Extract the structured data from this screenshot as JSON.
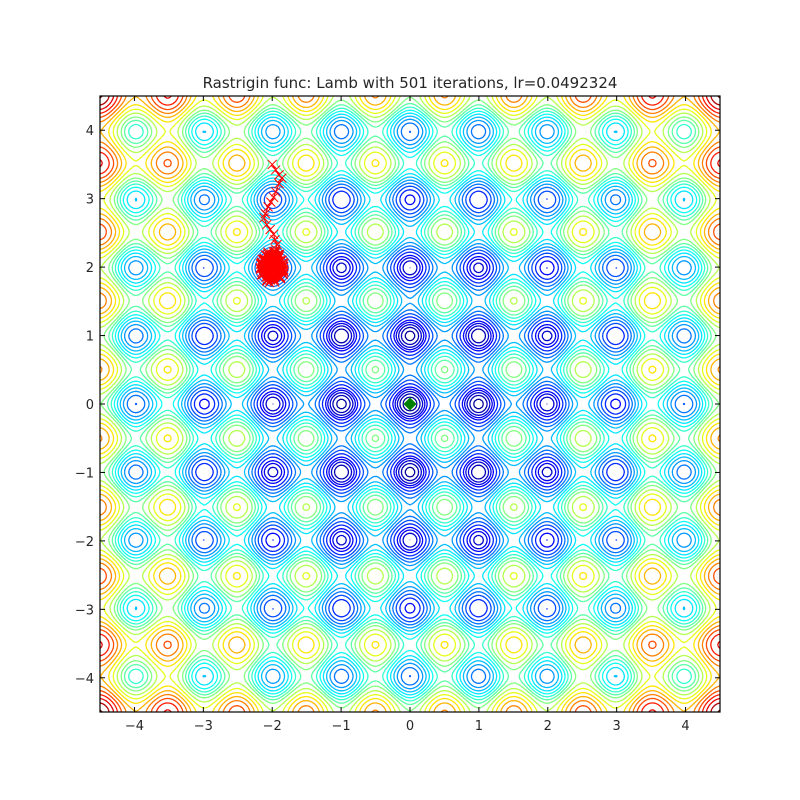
{
  "chart_data": {
    "type": "contour",
    "title": "Rastrigin func: Lamb with 501 iterations, lr=0.0492324",
    "xlabel": "",
    "ylabel": "",
    "xlim": [
      -4.5,
      4.5
    ],
    "ylim": [
      -4.5,
      4.5
    ],
    "xticks": [
      -4,
      -3,
      -2,
      -1,
      0,
      1,
      2,
      3,
      4
    ],
    "yticks": [
      -4,
      -3,
      -2,
      -1,
      0,
      1,
      2,
      3,
      4
    ],
    "xtick_labels": [
      "−4",
      "−3",
      "−2",
      "−1",
      "0",
      "1",
      "2",
      "3",
      "4"
    ],
    "ytick_labels": [
      "−4",
      "−3",
      "−2",
      "−1",
      "0",
      "1",
      "2",
      "3",
      "4"
    ],
    "function": "rastrigin",
    "colormap": "jet",
    "grid": false,
    "contour_levels": [
      2,
      4,
      6,
      8,
      10,
      13,
      16,
      19,
      22,
      25,
      28,
      31,
      34,
      37,
      40,
      44,
      48,
      52,
      56,
      60,
      64,
      68,
      72,
      76,
      80
    ],
    "level_range": [
      0,
      80
    ],
    "trajectory": {
      "color": "#ff0000",
      "start": [
        -2.0,
        3.5
      ],
      "path": [
        [
          -2.0,
          3.5
        ],
        [
          -1.95,
          3.42
        ],
        [
          -1.9,
          3.35
        ],
        [
          -1.86,
          3.3
        ],
        [
          -1.9,
          3.22
        ],
        [
          -1.95,
          3.1
        ],
        [
          -1.98,
          3.02
        ],
        [
          -2.02,
          2.95
        ],
        [
          -2.06,
          2.88
        ],
        [
          -2.1,
          2.78
        ],
        [
          -2.12,
          2.72
        ],
        [
          -2.08,
          2.62
        ],
        [
          -2.03,
          2.55
        ],
        [
          -1.98,
          2.48
        ],
        [
          -1.96,
          2.4
        ],
        [
          -1.93,
          2.33
        ],
        [
          -1.95,
          2.26
        ],
        [
          -1.97,
          2.2
        ],
        [
          -2.0,
          2.12
        ],
        [
          -2.0,
          2.05
        ]
      ],
      "cluster_center": [
        -2.0,
        2.0
      ],
      "cluster_spread": 0.18
    },
    "optimum": {
      "x": 0,
      "y": 0,
      "marker": "diamond",
      "color": "#008000"
    }
  }
}
